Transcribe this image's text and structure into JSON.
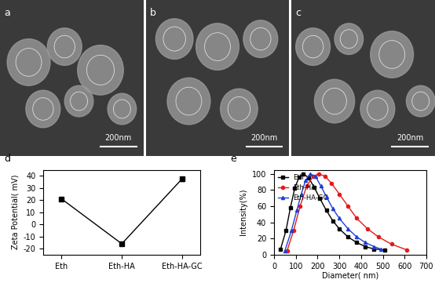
{
  "images": [
    {
      "panel_label": "a",
      "scale_bar": "200nm"
    },
    {
      "panel_label": "b",
      "scale_bar": "200nm"
    },
    {
      "panel_label": "c",
      "scale_bar": "200nm"
    }
  ],
  "chart_data": [
    {
      "panel_label": "d",
      "type": "line",
      "y_label": "Zeta Potential( mV)",
      "categories": [
        "Eth",
        "Eth-HA",
        "Eth-HA-GC"
      ],
      "values": [
        21,
        -16,
        37.5
      ],
      "errors": [
        1.0,
        0.5,
        1.5
      ],
      "color": "#000000",
      "marker": "square",
      "line_style": "solid",
      "ylim": [
        -25,
        45
      ],
      "yticks": [
        -20,
        -10,
        0,
        10,
        20,
        30,
        40
      ]
    },
    {
      "panel_label": "e",
      "type": "line",
      "x_label": "Diameter( nm)",
      "y_label": "Intensity(%)",
      "xlim": [
        0,
        700
      ],
      "xticks": [
        0,
        100,
        200,
        300,
        400,
        500,
        600,
        700
      ],
      "ylim": [
        0,
        105
      ],
      "yticks": [
        0,
        20,
        40,
        60,
        80,
        100
      ],
      "legend": "upper left",
      "series": [
        {
          "name": "Eth",
          "color": "#000000",
          "marker": "square",
          "line_style": "solid",
          "x": [
            30,
            55,
            75,
            95,
            115,
            135,
            160,
            185,
            210,
            240,
            270,
            300,
            340,
            380,
            420,
            460,
            510
          ],
          "values": [
            7,
            30,
            58,
            82,
            96,
            100,
            95,
            83,
            70,
            55,
            42,
            32,
            22,
            15,
            10,
            7,
            6
          ]
        },
        {
          "name": "Eth-HA",
          "color": "#e41a1c",
          "marker": "circle",
          "line_style": "solid",
          "x": [
            60,
            90,
            120,
            150,
            180,
            205,
            235,
            265,
            300,
            340,
            380,
            430,
            480,
            540,
            610
          ],
          "values": [
            5,
            30,
            60,
            85,
            97,
            100,
            97,
            88,
            75,
            60,
            45,
            32,
            22,
            13,
            6
          ]
        },
        {
          "name": "Eth-HA-GC",
          "color": "#1f3fd6",
          "marker": "triangle",
          "line_style": "solid",
          "x": [
            50,
            80,
            105,
            125,
            145,
            165,
            190,
            215,
            240,
            270,
            300,
            340,
            380,
            420,
            460,
            490
          ],
          "values": [
            5,
            30,
            55,
            75,
            92,
            100,
            97,
            85,
            72,
            57,
            45,
            32,
            22,
            15,
            10,
            7
          ]
        }
      ]
    }
  ]
}
